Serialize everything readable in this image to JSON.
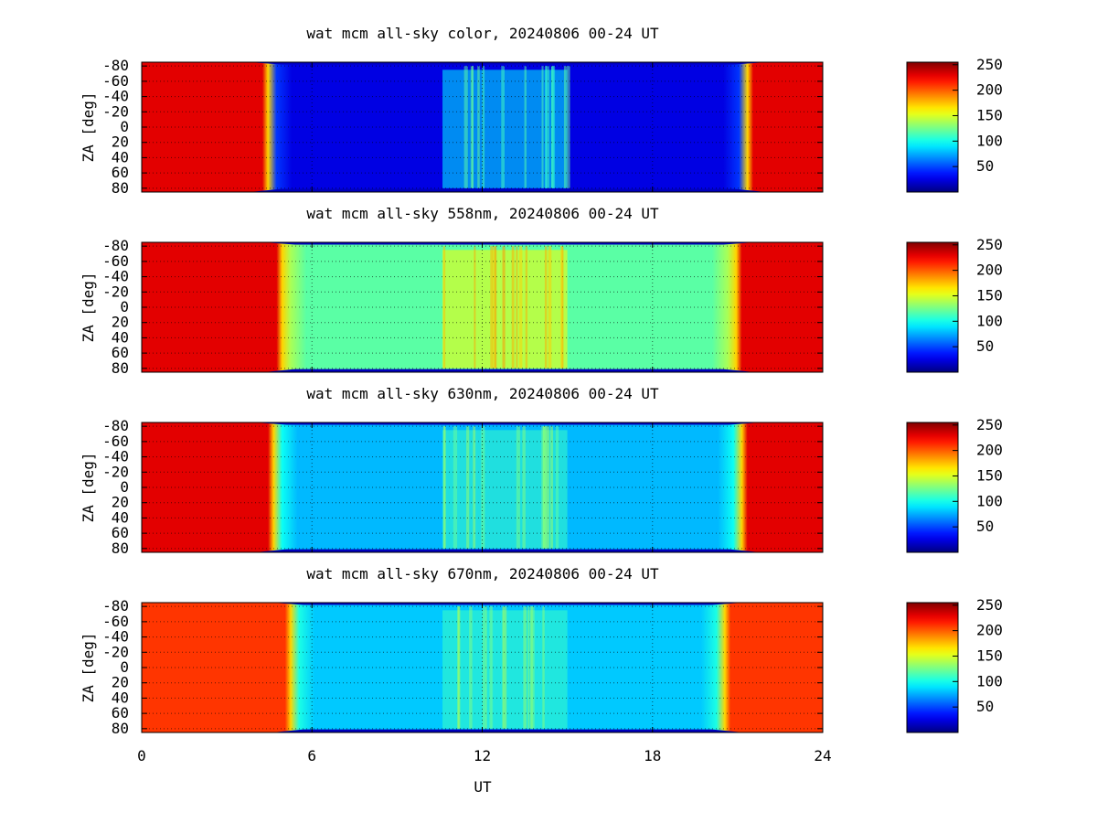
{
  "figure": {
    "xlabel": "UT",
    "x_ticks": [
      "0",
      "6",
      "12",
      "18",
      "24"
    ]
  },
  "chart_data": [
    {
      "type": "heatmap",
      "title": "wat mcm all-sky color, 20240806 00-24 UT",
      "xlabel": "UT",
      "ylabel": "ZA [deg]",
      "xlim": [
        0,
        24
      ],
      "ylim": [
        -85,
        85
      ],
      "y_ticks": [
        "-80",
        "-60",
        "-40",
        "-20",
        "0",
        "20",
        "40",
        "60",
        "80"
      ],
      "colorbar_ticks": [
        "50",
        "100",
        "150",
        "200",
        "250"
      ],
      "colorbar_range": [
        0,
        255
      ],
      "x_grid_ticks": [
        6,
        12,
        18
      ],
      "night_ut": [
        4.4,
        21.4
      ],
      "sky_level": 25,
      "outside_level": 230,
      "bright_intervals": [
        {
          "ut": [
            10.6,
            15.0
          ],
          "level": 95
        }
      ],
      "grid": true
    },
    {
      "type": "heatmap",
      "title": "wat mcm all-sky 558nm, 20240806 00-24 UT",
      "xlabel": "UT",
      "ylabel": "ZA [deg]",
      "xlim": [
        0,
        24
      ],
      "ylim": [
        -85,
        85
      ],
      "y_ticks": [
        "-80",
        "-60",
        "-40",
        "-20",
        "0",
        "20",
        "40",
        "60",
        "80"
      ],
      "colorbar_ticks": [
        "50",
        "100",
        "150",
        "200",
        "250"
      ],
      "colorbar_range": [
        0,
        255
      ],
      "x_grid_ticks": [
        6,
        12,
        18
      ],
      "night_ut": [
        4.9,
        21.0
      ],
      "sky_level": 118,
      "outside_level": 230,
      "bright_intervals": [
        {
          "ut": [
            10.6,
            15.0
          ],
          "level": 160
        }
      ],
      "grid": true
    },
    {
      "type": "heatmap",
      "title": "wat mcm all-sky 630nm, 20240806 00-24 UT",
      "xlabel": "UT",
      "ylabel": "ZA [deg]",
      "xlim": [
        0,
        24
      ],
      "ylim": [
        -85,
        85
      ],
      "y_ticks": [
        "-80",
        "-60",
        "-40",
        "-20",
        "0",
        "20",
        "40",
        "60",
        "80"
      ],
      "colorbar_ticks": [
        "50",
        "100",
        "150",
        "200",
        "250"
      ],
      "colorbar_range": [
        0,
        255
      ],
      "x_grid_ticks": [
        6,
        12,
        18
      ],
      "night_ut": [
        4.6,
        21.2
      ],
      "sky_level": 78,
      "outside_level": 230,
      "bright_intervals": [
        {
          "ut": [
            10.6,
            15.0
          ],
          "level": 110
        }
      ],
      "grid": true
    },
    {
      "type": "heatmap",
      "title": "wat mcm all-sky 670nm, 20240806 00-24 UT",
      "xlabel": "UT",
      "ylabel": "ZA [deg]",
      "xlim": [
        0,
        24
      ],
      "ylim": [
        -85,
        85
      ],
      "y_ticks": [
        "-80",
        "-60",
        "-40",
        "-20",
        "0",
        "20",
        "40",
        "60",
        "80"
      ],
      "colorbar_ticks": [
        "50",
        "100",
        "150",
        "200",
        "250"
      ],
      "colorbar_range": [
        0,
        255
      ],
      "x_grid_ticks": [
        6,
        12,
        18
      ],
      "night_ut": [
        5.2,
        20.6
      ],
      "sky_level": 82,
      "outside_level": 210,
      "bright_intervals": [
        {
          "ut": [
            10.6,
            15.0
          ],
          "level": 110
        }
      ],
      "grid": true
    }
  ]
}
